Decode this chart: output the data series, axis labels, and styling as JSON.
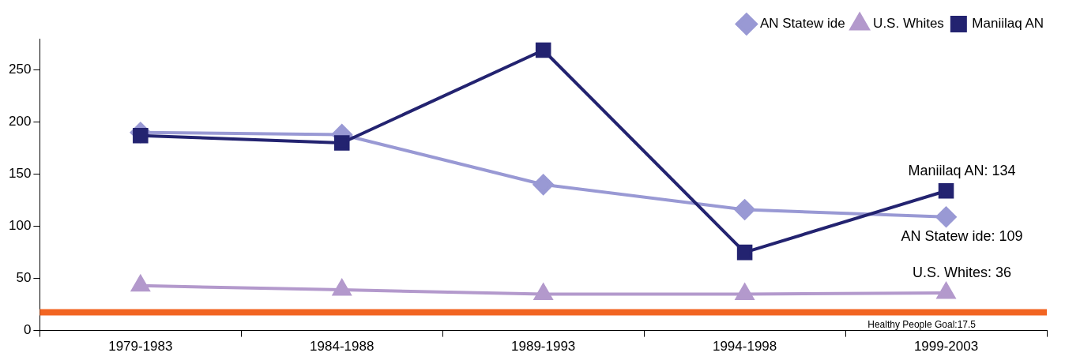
{
  "chart_data": {
    "type": "line",
    "categories": [
      "1979-1983",
      "1984-1988",
      "1989-1993",
      "1994-1998",
      "1999-2003"
    ],
    "series": [
      {
        "name": "AN Statew ide",
        "color": "#9999d4",
        "marker": "diamond",
        "values": [
          190,
          188,
          140,
          116,
          109
        ]
      },
      {
        "name": "U.S. Whites",
        "color": "#b399cc",
        "marker": "triangle",
        "values": [
          43,
          39,
          35,
          35,
          36
        ]
      },
      {
        "name": "Maniilaq AN",
        "color": "#232370",
        "marker": "square",
        "values": [
          187,
          180,
          269,
          75,
          134
        ]
      }
    ],
    "ylim": [
      0,
      280
    ],
    "yticks": [
      0,
      50,
      100,
      150,
      200,
      250
    ],
    "grid": false,
    "legend": "top right",
    "line_style": "solid",
    "ref_lines": [
      {
        "axis": "y",
        "value": 17.5,
        "label": "Healthy People Goal:17.5",
        "color": "#f26522"
      }
    ],
    "annotations": [
      {
        "text": "Maniilaq AN: 134",
        "x": "1999-2003",
        "y": 134
      },
      {
        "text": "AN Statew ide: 109",
        "x": "1999-2003",
        "y": 109
      },
      {
        "text": "U.S. Whites: 36",
        "x": "1999-2003",
        "y": 36
      }
    ]
  }
}
